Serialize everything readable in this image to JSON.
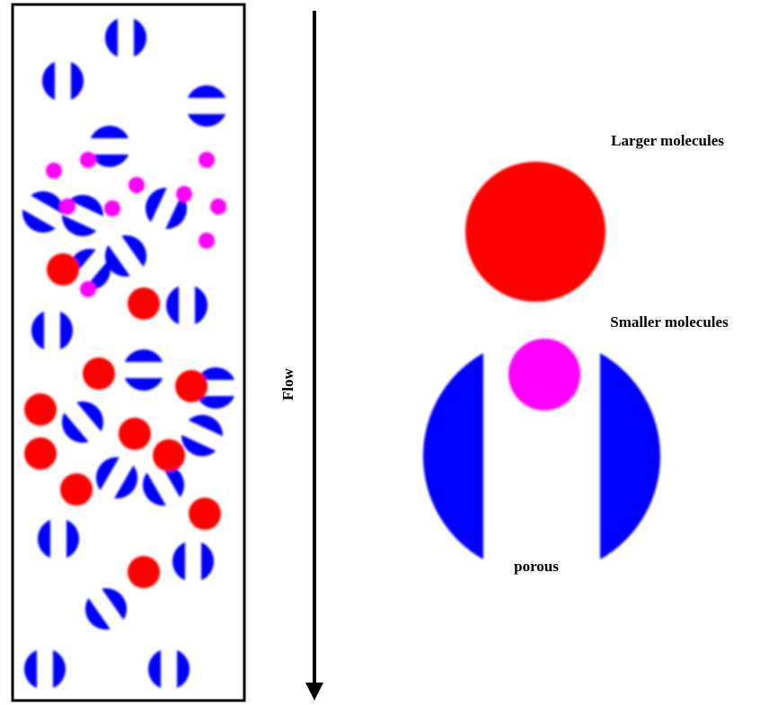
{
  "labels": {
    "larger": "Larger molecules",
    "smaller": "Smaller molecules",
    "porous": "porous",
    "flow": "Flow"
  }
}
